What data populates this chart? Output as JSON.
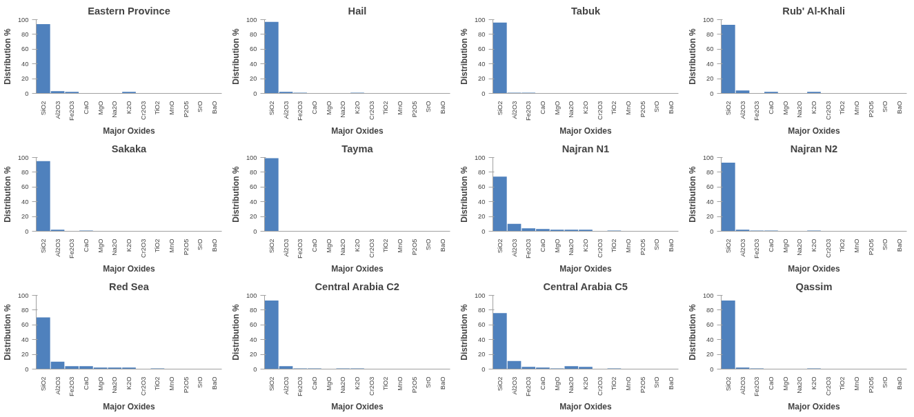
{
  "chart_data": [
    {
      "type": "bar",
      "title": "Eastern Province",
      "xlabel": "Major Oxides",
      "ylabel": "Distribution %",
      "categories": [
        "SiO2",
        "Al2O3",
        "Fe2O3",
        "CaO",
        "MgO",
        "Na2O",
        "K2O",
        "Cr2O3",
        "TiO2",
        "MnO",
        "P2O5",
        "SrO",
        "BaO"
      ],
      "values": [
        94,
        3,
        2,
        0,
        0,
        0,
        2,
        0,
        0,
        0,
        0,
        0,
        0
      ],
      "color": "#4f81bd",
      "ylim": [
        0,
        100
      ],
      "yticks": [
        0,
        20,
        40,
        60,
        80,
        100
      ]
    },
    {
      "type": "bar",
      "title": "Hail",
      "xlabel": "Major Oxides",
      "ylabel": "Distribution %",
      "categories": [
        "SiO2",
        "Al2O3",
        "Fe2O3",
        "CaO",
        "MgO",
        "Na2O",
        "K2O",
        "Cr2O3",
        "TiO2",
        "MnO",
        "P2O5",
        "SrO",
        "BaO"
      ],
      "values": [
        97,
        2,
        1,
        0,
        0,
        0,
        1,
        0,
        0,
        0,
        0,
        0,
        0
      ],
      "color": "#4f81bd",
      "ylim": [
        0,
        100
      ],
      "yticks": [
        0,
        20,
        40,
        60,
        80,
        100
      ]
    },
    {
      "type": "bar",
      "title": "Tabuk",
      "xlabel": "Major Oxides",
      "ylabel": "Distribution %",
      "categories": [
        "SiO2",
        "Al2O3",
        "Fe2O3",
        "CaO",
        "MgO",
        "Na2O",
        "K2O",
        "Cr2O3",
        "TiO2",
        "MnO",
        "P2O5",
        "SrO",
        "BaO"
      ],
      "values": [
        96,
        1,
        1,
        0,
        0,
        0,
        0,
        0,
        0,
        0,
        0,
        0,
        0
      ],
      "color": "#4f81bd",
      "ylim": [
        0,
        100
      ],
      "yticks": [
        0,
        20,
        40,
        60,
        80,
        100
      ]
    },
    {
      "type": "bar",
      "title": "Rub' Al-Khali",
      "xlabel": "Major Oxides",
      "ylabel": "Distribution %",
      "categories": [
        "SiO2",
        "Al2O3",
        "Fe2O3",
        "CaO",
        "MgO",
        "Na2O",
        "K2O",
        "Cr2O3",
        "TiO2",
        "MnO",
        "P2O5",
        "SrO",
        "BaO"
      ],
      "values": [
        93,
        4,
        0,
        2,
        0,
        0,
        2,
        0,
        0,
        0,
        0,
        0,
        0
      ],
      "color": "#4f81bd",
      "ylim": [
        0,
        100
      ],
      "yticks": [
        0,
        20,
        40,
        60,
        80,
        100
      ]
    },
    {
      "type": "bar",
      "title": "Sakaka",
      "xlabel": "Major Oxides",
      "ylabel": "Distribution %",
      "categories": [
        "SiO2",
        "Al2O3",
        "Fe2O3",
        "CaO",
        "MgO",
        "Na2O",
        "K2O",
        "Cr2O3",
        "TiO2",
        "MnO",
        "P2O5",
        "SrO",
        "BaO"
      ],
      "values": [
        95,
        2,
        0,
        1,
        0,
        0,
        0,
        0,
        0,
        0,
        0,
        0,
        0
      ],
      "color": "#4f81bd",
      "ylim": [
        0,
        100
      ],
      "yticks": [
        0,
        20,
        40,
        60,
        80,
        100
      ]
    },
    {
      "type": "bar",
      "title": "Tayma",
      "xlabel": "Major Oxides",
      "ylabel": "Distribution %",
      "categories": [
        "SiO2",
        "Al2O3",
        "Fe2O3",
        "CaO",
        "MgO",
        "Na2O",
        "K2O",
        "Cr2O3",
        "TiO2",
        "MnO",
        "P2O5",
        "SrO",
        "BaO"
      ],
      "values": [
        99,
        0,
        0,
        0,
        0,
        0,
        0,
        0,
        0,
        0,
        0,
        0,
        0
      ],
      "color": "#4f81bd",
      "ylim": [
        0,
        100
      ],
      "yticks": [
        0,
        20,
        40,
        60,
        80,
        100
      ]
    },
    {
      "type": "bar",
      "title": "Najran N1",
      "xlabel": "Major Oxides",
      "ylabel": "Distribution %",
      "categories": [
        "SiO2",
        "Al2O3",
        "Fe2O3",
        "CaO",
        "MgO",
        "Na2O",
        "K2O",
        "Cr2O3",
        "TiO2",
        "MnO",
        "P2O5",
        "SrO",
        "BaO"
      ],
      "values": [
        74,
        10,
        4,
        3,
        2,
        2,
        2,
        0,
        1,
        0,
        0,
        0,
        0
      ],
      "color": "#4f81bd",
      "ylim": [
        0,
        100
      ],
      "yticks": [
        0,
        20,
        40,
        60,
        80,
        100
      ]
    },
    {
      "type": "bar",
      "title": "Najran N2",
      "xlabel": "Major Oxides",
      "ylabel": "Distribution %",
      "categories": [
        "SiO2",
        "Al2O3",
        "Fe2O3",
        "CaO",
        "MgO",
        "Na2O",
        "K2O",
        "Cr2O3",
        "TiO2",
        "MnO",
        "P2O5",
        "SrO",
        "BaO"
      ],
      "values": [
        93,
        2,
        1,
        1,
        0,
        0,
        1,
        0,
        0,
        0,
        0,
        0,
        0
      ],
      "color": "#4f81bd",
      "ylim": [
        0,
        100
      ],
      "yticks": [
        0,
        20,
        40,
        60,
        80,
        100
      ]
    },
    {
      "type": "bar",
      "title": "Red Sea",
      "xlabel": "Major Oxides",
      "ylabel": "Distribution %",
      "categories": [
        "SiO2",
        "Al2O3",
        "Fe2O3",
        "CaO",
        "MgO",
        "Na2O",
        "K2O",
        "Cr2O3",
        "TiO2",
        "MnO",
        "P2O5",
        "SrO",
        "BaO"
      ],
      "values": [
        70,
        10,
        4,
        4,
        2,
        2,
        2,
        0,
        1,
        0,
        0,
        0,
        0
      ],
      "color": "#4f81bd",
      "ylim": [
        0,
        100
      ],
      "yticks": [
        0,
        20,
        40,
        60,
        80,
        100
      ]
    },
    {
      "type": "bar",
      "title": "Central Arabia C2",
      "xlabel": "Major Oxides",
      "ylabel": "Distribution %",
      "categories": [
        "SiO2",
        "Al2O3",
        "Fe2O3",
        "CaO",
        "MgO",
        "Na2O",
        "K2O",
        "Cr2O3",
        "TiO2",
        "MnO",
        "P2O5",
        "SrO",
        "BaO"
      ],
      "values": [
        93,
        4,
        1,
        1,
        0,
        1,
        1,
        0,
        0,
        0,
        0,
        0,
        0
      ],
      "color": "#4f81bd",
      "ylim": [
        0,
        100
      ],
      "yticks": [
        0,
        20,
        40,
        60,
        80,
        100
      ]
    },
    {
      "type": "bar",
      "title": "Central Arabia C5",
      "xlabel": "Major Oxides",
      "ylabel": "Distribution %",
      "categories": [
        "SiO2",
        "Al2O3",
        "Fe2O3",
        "CaO",
        "MgO",
        "Na2O",
        "K2O",
        "Cr2O3",
        "TiO2",
        "MnO",
        "P2O5",
        "SrO",
        "BaO"
      ],
      "values": [
        76,
        11,
        3,
        2,
        1,
        4,
        3,
        0,
        1,
        0,
        0,
        0,
        0
      ],
      "color": "#4f81bd",
      "ylim": [
        0,
        100
      ],
      "yticks": [
        0,
        20,
        40,
        60,
        80,
        100
      ]
    },
    {
      "type": "bar",
      "title": "Qassim",
      "xlabel": "Major Oxides",
      "ylabel": "Distribution %",
      "categories": [
        "SiO2",
        "Al2O3",
        "Fe2O3",
        "CaO",
        "MgO",
        "Na2O",
        "K2O",
        "Cr2O3",
        "TiO2",
        "MnO",
        "P2O5",
        "SrO",
        "BaO"
      ],
      "values": [
        93,
        2,
        1,
        0,
        0,
        0,
        1,
        0,
        0,
        0,
        0,
        0,
        0
      ],
      "color": "#4f81bd",
      "ylim": [
        0,
        100
      ],
      "yticks": [
        0,
        20,
        40,
        60,
        80,
        100
      ]
    }
  ]
}
